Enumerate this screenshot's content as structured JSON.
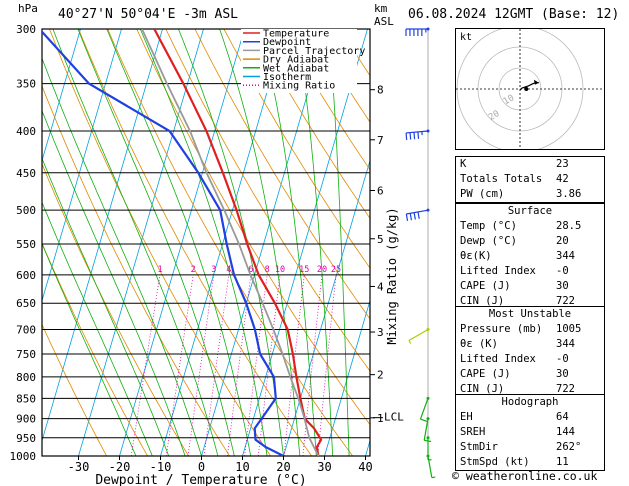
{
  "header": {
    "hpa": "hPa",
    "location": "40°27'N 50°04'E -3m ASL",
    "km": "km",
    "asl": "ASL",
    "datetime": "06.08.2024 12GMT (Base: 12)"
  },
  "legend": [
    {
      "label": "Temperature",
      "color": "#e02020"
    },
    {
      "label": "Dewpoint",
      "color": "#2040e0"
    },
    {
      "label": "Parcel Trajectory",
      "color": "#999999"
    },
    {
      "label": "Dry Adiabat",
      "color": "#e08a00"
    },
    {
      "label": "Wet Adiabat",
      "color": "#10b010"
    },
    {
      "label": "Isotherm",
      "color": "#00a0e0"
    },
    {
      "label": "Mixing Ratio",
      "color": "#e000b0"
    }
  ],
  "chart_data": {
    "type": "line",
    "xlabel": "Dewpoint / Temperature (°C)",
    "y_right_label": "Mixing Ratio (g/kg)",
    "x_ticks": [
      -30,
      -20,
      -10,
      0,
      10,
      20,
      30,
      40
    ],
    "pressure_levels": [
      300,
      350,
      400,
      450,
      500,
      550,
      600,
      650,
      700,
      750,
      800,
      850,
      900,
      950,
      1000
    ],
    "km_ticks": [
      {
        "label": "8",
        "p": 356
      },
      {
        "label": "7",
        "p": 410
      },
      {
        "label": "6",
        "p": 473
      },
      {
        "label": "5",
        "p": 542
      },
      {
        "label": "4",
        "p": 620
      },
      {
        "label": "3",
        "p": 705
      },
      {
        "label": "2",
        "p": 795
      },
      {
        "label": "1",
        "p": 898
      }
    ],
    "lcl": {
      "label": "LCL",
      "p": 895
    },
    "mixing_ratio_labels": [
      "1",
      "2",
      "3",
      "4",
      "6",
      "8",
      "10",
      "15",
      "20",
      "25"
    ],
    "mixing_ratio_values": [
      1,
      2,
      3,
      4,
      6,
      8,
      10,
      15,
      20,
      25
    ],
    "series": [
      {
        "name": "Temperature",
        "points": [
          [
            28.5,
            1000
          ],
          [
            27.5,
            975
          ],
          [
            28,
            955
          ],
          [
            25.5,
            925
          ],
          [
            22.5,
            900
          ],
          [
            20,
            850
          ],
          [
            17.5,
            800
          ],
          [
            15,
            750
          ],
          [
            12,
            700
          ],
          [
            7,
            650
          ],
          [
            1,
            600
          ],
          [
            -4,
            550
          ],
          [
            -9,
            500
          ],
          [
            -15,
            450
          ],
          [
            -22,
            400
          ],
          [
            -31,
            350
          ],
          [
            -42,
            300
          ]
        ]
      },
      {
        "name": "Dewpoint",
        "points": [
          [
            20,
            1000
          ],
          [
            15,
            975
          ],
          [
            12,
            955
          ],
          [
            11,
            925
          ],
          [
            12,
            900
          ],
          [
            14,
            850
          ],
          [
            12,
            800
          ],
          [
            7,
            750
          ],
          [
            4,
            700
          ],
          [
            0,
            650
          ],
          [
            -5,
            600
          ],
          [
            -9,
            550
          ],
          [
            -13,
            500
          ],
          [
            -21,
            450
          ],
          [
            -31,
            400
          ],
          [
            -54,
            350
          ],
          [
            -70,
            300
          ]
        ]
      },
      {
        "name": "Parcel Trajectory",
        "points": [
          [
            28.5,
            1000
          ],
          [
            25,
            950
          ],
          [
            22.2,
            895
          ],
          [
            19.5,
            850
          ],
          [
            16,
            800
          ],
          [
            12.5,
            750
          ],
          [
            8.5,
            700
          ],
          [
            4,
            650
          ],
          [
            -1,
            600
          ],
          [
            -6,
            550
          ],
          [
            -12,
            500
          ],
          [
            -19,
            450
          ],
          [
            -26,
            400
          ],
          [
            -35,
            350
          ],
          [
            -45,
            300
          ]
        ]
      }
    ],
    "winds": [
      {
        "p": 300,
        "dir": 270,
        "spd": 55
      },
      {
        "p": 400,
        "dir": 265,
        "spd": 45
      },
      {
        "p": 500,
        "dir": 260,
        "spd": 40
      },
      {
        "p": 700,
        "dir": 240,
        "spd": 5
      },
      {
        "p": 850,
        "dir": 200,
        "spd": 10
      },
      {
        "p": 900,
        "dir": 190,
        "spd": 10
      },
      {
        "p": 950,
        "dir": 180,
        "spd": 5
      },
      {
        "p": 1000,
        "dir": 170,
        "spd": 5
      }
    ]
  },
  "hodograph": {
    "label": "kt",
    "ring_labels": [
      "10",
      "20"
    ],
    "trace": [
      [
        0,
        -1
      ],
      [
        2,
        1
      ],
      [
        5,
        2
      ],
      [
        8,
        3
      ],
      [
        12,
        5
      ],
      [
        15,
        6
      ],
      [
        18,
        6
      ]
    ],
    "storm": [
      6,
      0
    ]
  },
  "indices": [
    {
      "label": "K",
      "value": "23"
    },
    {
      "label": "Totals Totals",
      "value": "42"
    },
    {
      "label": "PW (cm)",
      "value": "3.86"
    }
  ],
  "surface": {
    "title": "Surface",
    "rows": [
      {
        "label": "Temp (°C)",
        "value": "28.5"
      },
      {
        "label": "Dewp (°C)",
        "value": "20"
      },
      {
        "label": "θε(K)",
        "value": "344"
      },
      {
        "label": "Lifted Index",
        "value": "-0"
      },
      {
        "label": "CAPE (J)",
        "value": "30"
      },
      {
        "label": "CIN (J)",
        "value": "722"
      }
    ]
  },
  "most_unstable": {
    "title": "Most Unstable",
    "rows": [
      {
        "label": "Pressure (mb)",
        "value": "1005"
      },
      {
        "label": "θε (K)",
        "value": "344"
      },
      {
        "label": "Lifted Index",
        "value": "-0"
      },
      {
        "label": "CAPE (J)",
        "value": "30"
      },
      {
        "label": "CIN (J)",
        "value": "722"
      }
    ]
  },
  "hodo_table": {
    "title": "Hodograph",
    "rows": [
      {
        "label": "EH",
        "value": "64"
      },
      {
        "label": "SREH",
        "value": "144"
      },
      {
        "label": "StmDir",
        "value": "262°"
      },
      {
        "label": "StmSpd (kt)",
        "value": "11"
      }
    ]
  },
  "footer": "© weatheronline.co.uk"
}
